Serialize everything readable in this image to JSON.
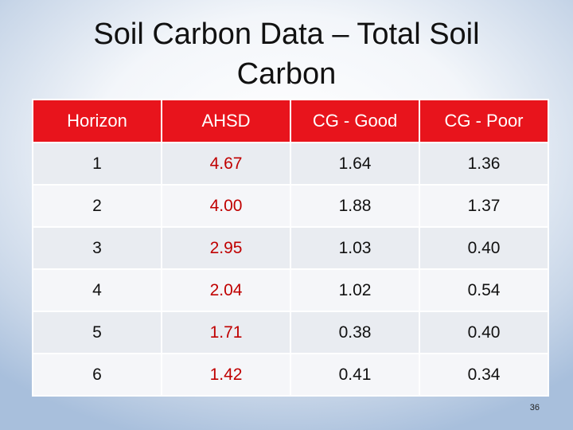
{
  "header": {
    "title": "Soil Carbon Data – Total Soil Carbon"
  },
  "table": {
    "columns": [
      "Horizon",
      "AHSD",
      "CG - Good",
      "CG - Poor"
    ],
    "rows": [
      [
        "1",
        "4.67",
        "1.64",
        "1.36"
      ],
      [
        "2",
        "4.00",
        "1.88",
        "1.37"
      ],
      [
        "3",
        "2.95",
        "1.03",
        "0.40"
      ],
      [
        "4",
        "2.04",
        "1.02",
        "0.54"
      ],
      [
        "5",
        "1.71",
        "0.38",
        "0.40"
      ],
      [
        "6",
        "1.42",
        "0.41",
        "0.34"
      ]
    ]
  },
  "footer": {
    "page_number": "36"
  }
}
